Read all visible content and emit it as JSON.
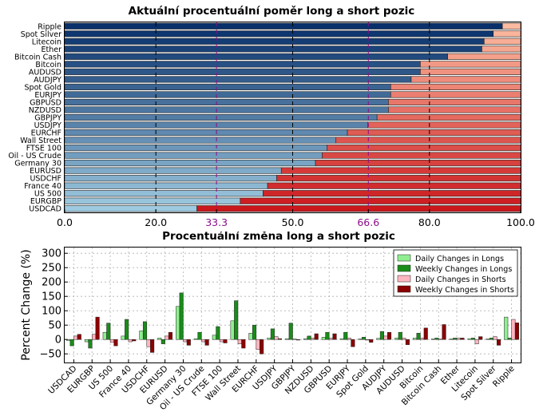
{
  "chart_data": [
    {
      "type": "bar",
      "orientation": "horizontal",
      "stacked": true,
      "title": "Aktuální procentuální poměr long a short pozic",
      "categories": [
        "Ripple",
        "Spot Silver",
        "Litecoin",
        "Ether",
        "Bitcoin Cash",
        "Bitcoin",
        "AUDUSD",
        "AUDJPY",
        "Spot Gold",
        "EURJPY",
        "GBPUSD",
        "NZDUSD",
        "GBPJPY",
        "USDJPY",
        "EURCHF",
        "Wall Street",
        "FTSE 100",
        "Oil - US Crude",
        "Germany 30",
        "EURUSD",
        "USDCHF",
        "France 40",
        "US 500",
        "EURGBP",
        "USDCAD"
      ],
      "long_pct": [
        96,
        94,
        92,
        91.5,
        84,
        78,
        78,
        76,
        71.5,
        71.5,
        71,
        71,
        68.5,
        66.5,
        62,
        59.5,
        57.5,
        56.5,
        55,
        47.5,
        46.5,
        44.5,
        43.5,
        38.5,
        29
      ],
      "xlim": [
        0,
        100
      ],
      "xticks": [
        "0.0",
        "20.0",
        "33.3",
        "50.0",
        "66.6",
        "80.0",
        "100.0"
      ],
      "xtick_values": [
        0,
        20,
        33.3,
        50,
        66.6,
        80,
        100
      ],
      "highlight_ticks": [
        "33.3",
        "66.6"
      ],
      "colors": {
        "highlight": "#8b0d8b"
      }
    },
    {
      "type": "bar",
      "grouped": true,
      "title": "Procentuální změna long a short pozic",
      "ylabel": "Percent Change (%)",
      "ylim": [
        -80,
        320
      ],
      "yticks": [
        "300",
        "250",
        "200",
        "150",
        "100",
        "50",
        "0",
        "−50"
      ],
      "ytick_values": [
        300,
        250,
        200,
        150,
        100,
        50,
        0,
        -50
      ],
      "categories": [
        "USDCAD",
        "EURGBP",
        "US 500",
        "France 40",
        "USDCHF",
        "EURUSD",
        "Germany 30",
        "Oil - US Crude",
        "FTSE 100",
        "Wall Street",
        "EURCHF",
        "USDJPY",
        "GBPJPY",
        "NZDUSD",
        "GBPUSD",
        "EURJPY",
        "Spot Gold",
        "AUDJPY",
        "AUDUSD",
        "Bitcoin",
        "Bitcoin Cash",
        "Ether",
        "Litecoin",
        "Spot Silver",
        "Ripple"
      ],
      "legend_position": "top-right",
      "series": [
        {
          "name": "Daily Changes in Longs",
          "color": "#90ee90",
          "values": [
            -3,
            -8,
            25,
            12,
            30,
            5,
            115,
            3,
            15,
            65,
            22,
            5,
            3,
            3,
            8,
            3,
            2,
            4,
            5,
            5,
            2,
            2,
            3,
            2,
            78
          ]
        },
        {
          "name": "Weekly Changes in Longs",
          "color": "#1a8c1a",
          "values": [
            -22,
            -30,
            57,
            70,
            62,
            -15,
            162,
            25,
            45,
            135,
            50,
            37,
            57,
            12,
            25,
            25,
            8,
            28,
            25,
            22,
            5,
            5,
            5,
            5,
            5
          ]
        },
        {
          "name": "Daily Changes in Shorts",
          "color": "#ffb6c1",
          "values": [
            12,
            18,
            -10,
            -8,
            -25,
            12,
            -8,
            -8,
            -8,
            -15,
            -35,
            10,
            2,
            5,
            5,
            5,
            -2,
            12,
            5,
            5,
            2,
            5,
            -15,
            10,
            70
          ]
        },
        {
          "name": "Weekly Changes in Shorts",
          "color": "#8b0000",
          "values": [
            18,
            78,
            -22,
            -5,
            -45,
            25,
            -20,
            -20,
            -12,
            -30,
            -50,
            3,
            -2,
            20,
            20,
            -25,
            -10,
            25,
            -18,
            40,
            52,
            5,
            10,
            -20,
            58
          ]
        }
      ]
    }
  ]
}
